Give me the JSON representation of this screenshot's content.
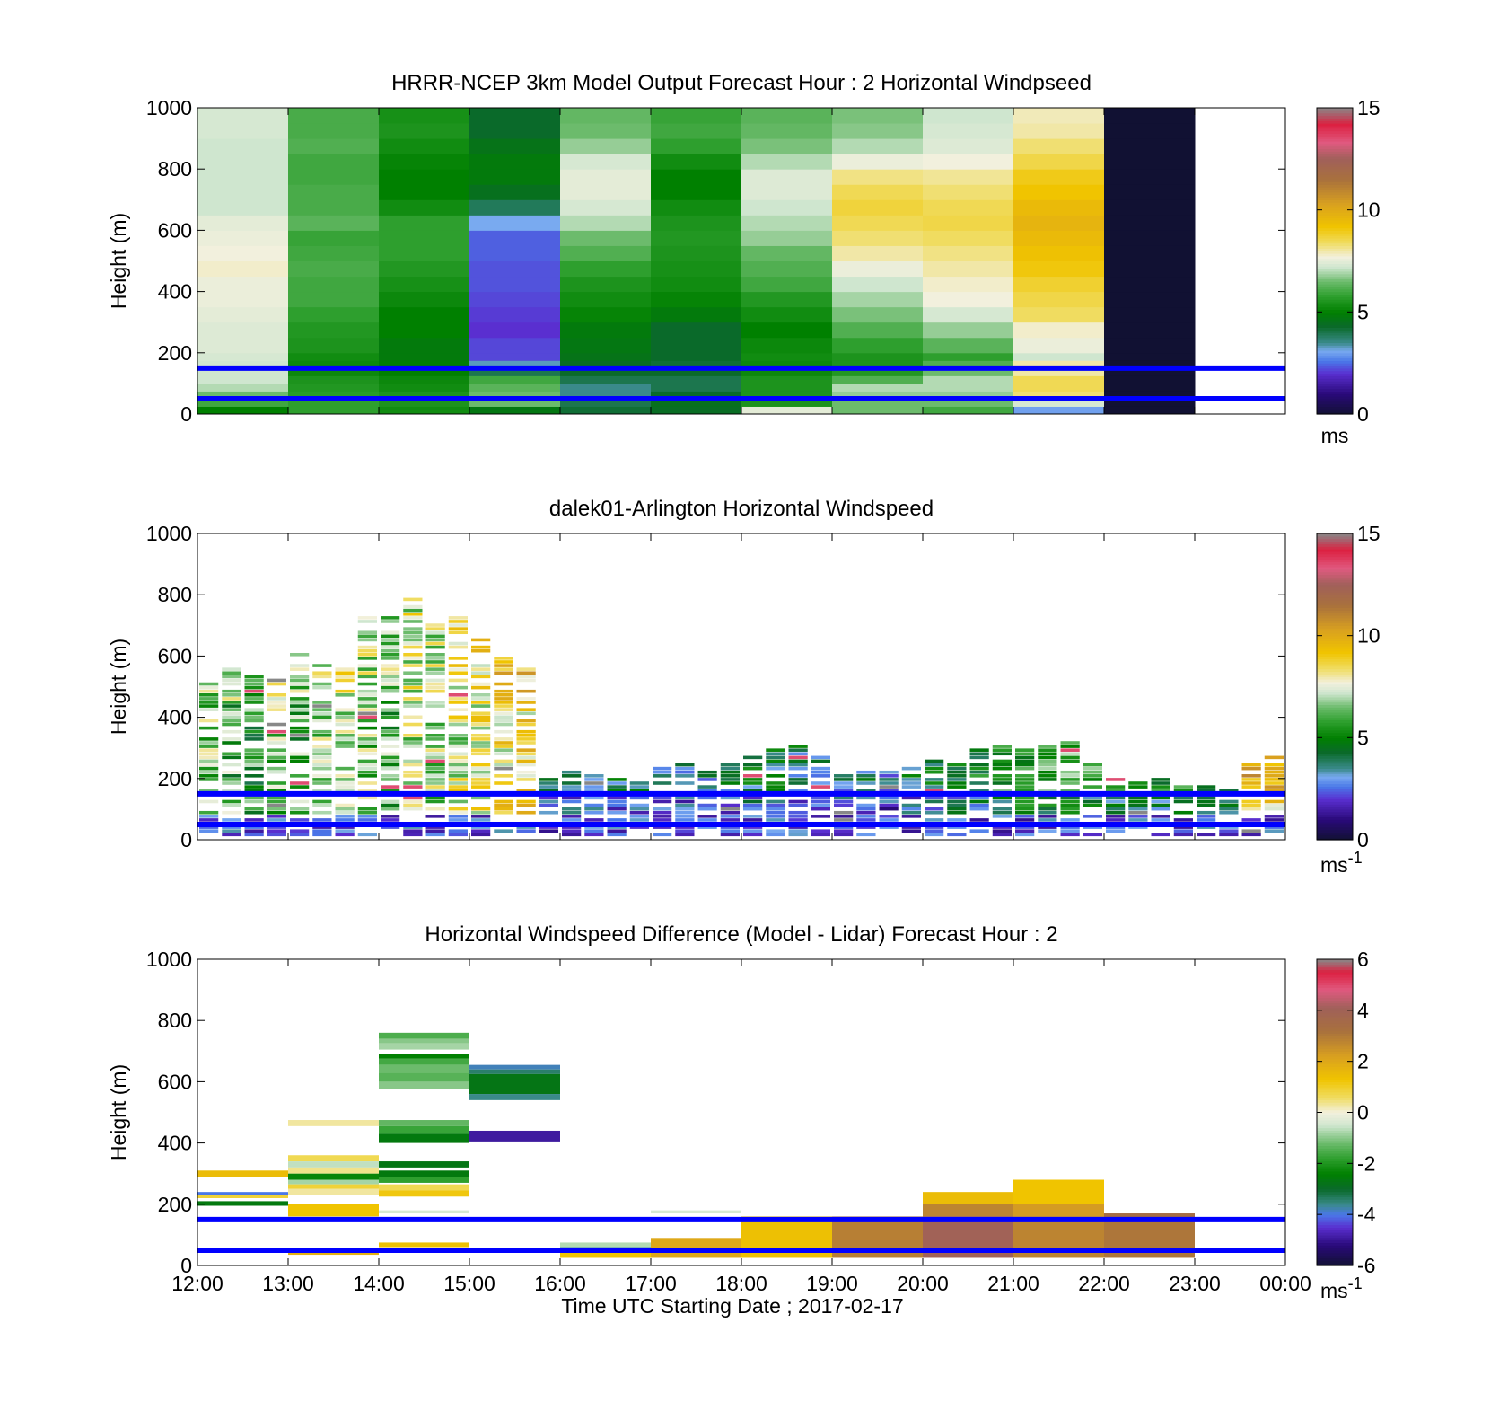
{
  "figure": {
    "xlabel": "Time UTC  Starting Date ; 2017-02-17",
    "xtick_labels": [
      "12:00",
      "13:00",
      "14:00",
      "15:00",
      "16:00",
      "17:00",
      "18:00",
      "19:00",
      "20:00",
      "21:00",
      "22:00",
      "23:00",
      "00:00"
    ]
  },
  "colors": {
    "reference_line": "#0000ff",
    "speed_colormap": [
      [
        0,
        "#111133"
      ],
      [
        1,
        "#2a0a7a"
      ],
      [
        2,
        "#5a2fd0"
      ],
      [
        2.6,
        "#4a78e8"
      ],
      [
        3.1,
        "#79aaf0"
      ],
      [
        3.5,
        "#3a8a8a"
      ],
      [
        4.3,
        "#0a6a2a"
      ],
      [
        5,
        "#008000"
      ],
      [
        5.8,
        "#2e9f2e"
      ],
      [
        6.5,
        "#6cbb6c"
      ],
      [
        7.2,
        "#cfe6cf"
      ],
      [
        7.7,
        "#f2f0dd"
      ],
      [
        8.4,
        "#f0dc60"
      ],
      [
        9.2,
        "#f0c400"
      ],
      [
        10.3,
        "#d9a020"
      ],
      [
        11.5,
        "#a8713d"
      ],
      [
        12.5,
        "#a0605a"
      ],
      [
        13.3,
        "#e05a80"
      ],
      [
        14.2,
        "#dc2040"
      ],
      [
        15,
        "#888888"
      ]
    ],
    "diff_colormap": [
      [
        -6,
        "#111133"
      ],
      [
        -5.2,
        "#2a0a7a"
      ],
      [
        -4.5,
        "#5a2fd0"
      ],
      [
        -4,
        "#4a78e8"
      ],
      [
        -3.6,
        "#3a8a8a"
      ],
      [
        -3,
        "#0a6a2a"
      ],
      [
        -2.4,
        "#008000"
      ],
      [
        -1.8,
        "#2e9f2e"
      ],
      [
        -1.2,
        "#6cbb6c"
      ],
      [
        -0.5,
        "#cfe6cf"
      ],
      [
        0,
        "#f2f0dd"
      ],
      [
        0.6,
        "#f0dc60"
      ],
      [
        1.3,
        "#f0c400"
      ],
      [
        2.2,
        "#d9a020"
      ],
      [
        3.2,
        "#a8713d"
      ],
      [
        4.1,
        "#a0605a"
      ],
      [
        4.8,
        "#e05a80"
      ],
      [
        5.5,
        "#dc2040"
      ],
      [
        6,
        "#888888"
      ]
    ]
  },
  "chart_data": [
    {
      "type": "heatmap",
      "title": "HRRR-NCEP 3km Model Output   Forecast Hour : 2 Horizontal Windpseed",
      "xlabel": "",
      "ylabel": "Height (m)",
      "xlim_hours": [
        12,
        24
      ],
      "ylim": [
        0,
        1000
      ],
      "yticks": [
        0,
        200,
        400,
        600,
        800,
        1000
      ],
      "clim": [
        0,
        15
      ],
      "colorbar_ticks": [
        0,
        5,
        10,
        15
      ],
      "colorbar_label": "ms",
      "colorbar_label_sup": "",
      "reference_lines_m": [
        150,
        50
      ],
      "grid": false,
      "x_hours": [
        12,
        13,
        14,
        15,
        16,
        17,
        18,
        19,
        20,
        21,
        22
      ],
      "y_levels_m": [
        25,
        50,
        75,
        100,
        125,
        150,
        175,
        200,
        250,
        300,
        350,
        400,
        450,
        500,
        550,
        600,
        650,
        700,
        750,
        800,
        850,
        900,
        950,
        1000
      ],
      "z": [
        [
          5,
          5.8,
          5.3,
          4.7,
          4.2,
          4.4,
          7.5,
          6.5,
          6,
          3
        ],
        [
          6,
          5.8,
          5.5,
          6.5,
          4,
          4.5,
          5.5,
          6.5,
          6.5,
          7.3
        ],
        [
          6.5,
          5.7,
          5.5,
          6.5,
          3.5,
          4.3,
          5.5,
          6.8,
          6.8,
          8.3
        ],
        [
          7,
          5.6,
          5.3,
          6.3,
          3.5,
          4,
          5.5,
          7,
          7,
          8.5
        ],
        [
          7.2,
          5.5,
          5.2,
          6,
          4,
          4,
          5.5,
          6.2,
          7,
          8.5
        ],
        [
          7.2,
          5.2,
          5,
          4,
          4.3,
          4.3,
          5.2,
          5.6,
          6.5,
          8
        ],
        [
          7.2,
          5.2,
          4.9,
          3.3,
          4.4,
          4.2,
          5.2,
          5.5,
          6.2,
          8
        ],
        [
          7.3,
          5.3,
          4.8,
          2.2,
          4.6,
          4.3,
          5.3,
          5.5,
          5.8,
          7.2
        ],
        [
          7.4,
          5.5,
          4.8,
          2.2,
          4.7,
          4.3,
          5.2,
          5.8,
          6.3,
          7.6
        ],
        [
          7.4,
          5.6,
          5,
          2,
          4.8,
          4.3,
          5,
          6.2,
          6.8,
          7.8
        ],
        [
          7.5,
          5.8,
          5,
          2.1,
          5.1,
          4.8,
          5.3,
          6.6,
          7.3,
          8.4
        ],
        [
          7.6,
          6,
          5.2,
          2.2,
          5.3,
          5.1,
          5.6,
          6.9,
          7.7,
          8.6
        ],
        [
          7.6,
          6,
          5.4,
          2.3,
          5.5,
          5.3,
          6,
          7.2,
          7.8,
          8.8
        ],
        [
          7.8,
          6.1,
          5.6,
          2.3,
          5.8,
          5.4,
          6.2,
          7.6,
          8,
          9.1
        ],
        [
          7.7,
          6,
          5.8,
          2.4,
          6.2,
          5.5,
          6.4,
          8,
          8.2,
          9.3
        ],
        [
          7.6,
          5.9,
          5.8,
          2.4,
          6.5,
          5.6,
          6.8,
          8.3,
          8.4,
          9.5
        ],
        [
          7.5,
          6.3,
          5.8,
          3.1,
          7,
          5.5,
          7,
          8.5,
          8.6,
          9.7
        ],
        [
          7.2,
          6.1,
          5.3,
          3.9,
          7.3,
          5.3,
          7.2,
          8.7,
          8.5,
          9.5
        ],
        [
          7.2,
          6.1,
          5.0,
          4.5,
          7.5,
          5.0,
          7.4,
          8.5,
          8.3,
          9.2
        ],
        [
          7.2,
          6,
          5.0,
          4.8,
          7.5,
          5.0,
          7.4,
          8.2,
          8.1,
          9.0
        ],
        [
          7.2,
          6,
          5.1,
          4.8,
          7.3,
          5.3,
          7,
          7.6,
          7.7,
          8.6
        ],
        [
          7.2,
          6.2,
          5.3,
          4.6,
          6.8,
          5.8,
          6.6,
          7.0,
          7.4,
          8.3
        ],
        [
          7.3,
          6.1,
          5.5,
          4.3,
          6.5,
          6,
          6.4,
          6.7,
          7.3,
          8.0
        ],
        [
          7.3,
          6.1,
          5.4,
          4.3,
          6.4,
          5.9,
          6.3,
          6.6,
          7.2,
          7.9
        ]
      ]
    },
    {
      "type": "heatmap",
      "title": "dalek01-Arlington  Horizontal Windspeed",
      "xlabel": "",
      "ylabel": "Height (m)",
      "xlim_hours": [
        12,
        24
      ],
      "ylim": [
        0,
        1000
      ],
      "yticks": [
        0,
        200,
        400,
        600,
        800,
        1000
      ],
      "clim": [
        0,
        15
      ],
      "colorbar_ticks": [
        0,
        5,
        10,
        15
      ],
      "colorbar_label": "ms",
      "colorbar_label_sup": "-1",
      "reference_lines_m": [
        150,
        50
      ],
      "grid": false,
      "columns": [
        {
          "t": 12.0,
          "top": 520,
          "base": 6.5
        },
        {
          "t": 12.25,
          "top": 560,
          "base": 6.0
        },
        {
          "t": 12.5,
          "top": 550,
          "base": 5.5
        },
        {
          "t": 12.75,
          "top": 540,
          "base": 6.5
        },
        {
          "t": 13.0,
          "top": 600,
          "base": 6.0
        },
        {
          "t": 13.25,
          "top": 580,
          "base": 6.8
        },
        {
          "t": 13.5,
          "top": 560,
          "base": 7.2
        },
        {
          "t": 13.75,
          "top": 740,
          "base": 6.5
        },
        {
          "t": 14.0,
          "top": 750,
          "base": 6.0
        },
        {
          "t": 14.25,
          "top": 790,
          "base": 7.0
        },
        {
          "t": 14.5,
          "top": 700,
          "base": 6.8
        },
        {
          "t": 14.75,
          "top": 730,
          "base": 7.5
        },
        {
          "t": 15.0,
          "top": 650,
          "base": 7.8
        },
        {
          "t": 15.25,
          "top": 620,
          "base": 8.3
        },
        {
          "t": 15.5,
          "top": 560,
          "base": 8.5
        },
        {
          "t": 15.75,
          "top": 210,
          "base": 3.0
        },
        {
          "t": 16.0,
          "top": 220,
          "base": 2.5
        },
        {
          "t": 16.25,
          "top": 210,
          "base": 2.8
        },
        {
          "t": 16.5,
          "top": 200,
          "base": 2.6
        },
        {
          "t": 16.75,
          "top": 190,
          "base": 2.5
        },
        {
          "t": 17.0,
          "top": 230,
          "base": 2.7
        },
        {
          "t": 17.25,
          "top": 240,
          "base": 2.2
        },
        {
          "t": 17.5,
          "top": 230,
          "base": 2.4
        },
        {
          "t": 17.75,
          "top": 250,
          "base": 2.6
        },
        {
          "t": 18.0,
          "top": 270,
          "base": 3.0
        },
        {
          "t": 18.25,
          "top": 310,
          "base": 3.2
        },
        {
          "t": 18.5,
          "top": 300,
          "base": 2.8
        },
        {
          "t": 18.75,
          "top": 270,
          "base": 2.6
        },
        {
          "t": 19.0,
          "top": 210,
          "base": 2.4
        },
        {
          "t": 19.25,
          "top": 230,
          "base": 2.4
        },
        {
          "t": 19.5,
          "top": 220,
          "base": 2.2
        },
        {
          "t": 19.75,
          "top": 230,
          "base": 2.7
        },
        {
          "t": 20.0,
          "top": 270,
          "base": 3.2
        },
        {
          "t": 20.25,
          "top": 250,
          "base": 3.5
        },
        {
          "t": 20.5,
          "top": 290,
          "base": 3.8
        },
        {
          "t": 20.75,
          "top": 300,
          "base": 4.3
        },
        {
          "t": 21.0,
          "top": 290,
          "base": 4.6
        },
        {
          "t": 21.25,
          "top": 310,
          "base": 4.8
        },
        {
          "t": 21.5,
          "top": 340,
          "base": 4.8
        },
        {
          "t": 21.75,
          "top": 240,
          "base": 4.4
        },
        {
          "t": 22.0,
          "top": 200,
          "base": 4.0
        },
        {
          "t": 22.25,
          "top": 190,
          "base": 3.8
        },
        {
          "t": 22.5,
          "top": 200,
          "base": 4.0
        },
        {
          "t": 22.75,
          "top": 180,
          "base": 4.1
        },
        {
          "t": 23.0,
          "top": 170,
          "base": 4.2
        },
        {
          "t": 23.25,
          "top": 160,
          "base": 4.0
        },
        {
          "t": 23.5,
          "top": 250,
          "base": 8.8
        },
        {
          "t": 23.75,
          "top": 280,
          "base": 8.6
        }
      ]
    },
    {
      "type": "heatmap",
      "title": "Horizontal Windspeed Difference (Model - Lidar) Forecast Hour : 2",
      "xlabel": "Time UTC  Starting Date ; 2017-02-17",
      "ylabel": "Height (m)",
      "xlim_hours": [
        12,
        24
      ],
      "ylim": [
        0,
        1000
      ],
      "yticks": [
        0,
        200,
        400,
        600,
        800,
        1000
      ],
      "clim": [
        -6,
        6
      ],
      "colorbar_ticks": [
        -6,
        -4,
        -2,
        0,
        2,
        4,
        6
      ],
      "colorbar_label": "ms",
      "colorbar_label_sup": "-1",
      "reference_lines_m": [
        150,
        50
      ],
      "grid": false,
      "cells": [
        {
          "t0": 12,
          "t1": 13,
          "y0": 290,
          "y1": 310,
          "v": 1.5
        },
        {
          "t0": 12,
          "t1": 13,
          "y0": 230,
          "y1": 240,
          "v": -4.0
        },
        {
          "t0": 12,
          "t1": 13,
          "y0": 220,
          "y1": 230,
          "v": 0.9
        },
        {
          "t0": 12,
          "t1": 13,
          "y0": 195,
          "y1": 210,
          "v": -2.6
        },
        {
          "t0": 13,
          "t1": 14,
          "y0": 455,
          "y1": 475,
          "v": 0.3
        },
        {
          "t0": 13,
          "t1": 14,
          "y0": 340,
          "y1": 360,
          "v": 0.7
        },
        {
          "t0": 13,
          "t1": 14,
          "y0": 320,
          "y1": 340,
          "v": -0.6
        },
        {
          "t0": 13,
          "t1": 14,
          "y0": 300,
          "y1": 320,
          "v": 0.4
        },
        {
          "t0": 13,
          "t1": 14,
          "y0": 280,
          "y1": 300,
          "v": -2.3
        },
        {
          "t0": 13,
          "t1": 14,
          "y0": 265,
          "y1": 280,
          "v": -0.8
        },
        {
          "t0": 13,
          "t1": 14,
          "y0": 250,
          "y1": 265,
          "v": 0.9
        },
        {
          "t0": 13,
          "t1": 14,
          "y0": 230,
          "y1": 250,
          "v": 0.3
        },
        {
          "t0": 13,
          "t1": 14,
          "y0": 160,
          "y1": 200,
          "v": 1.3
        },
        {
          "t0": 13,
          "t1": 14,
          "y0": 35,
          "y1": 45,
          "v": 1.8
        },
        {
          "t0": 14,
          "t1": 15,
          "y0": 740,
          "y1": 760,
          "v": -1.5
        },
        {
          "t0": 14,
          "t1": 15,
          "y0": 725,
          "y1": 740,
          "v": -1.0
        },
        {
          "t0": 14,
          "t1": 15,
          "y0": 705,
          "y1": 725,
          "v": -0.8
        },
        {
          "t0": 14,
          "t1": 15,
          "y0": 675,
          "y1": 690,
          "v": -2.4
        },
        {
          "t0": 14,
          "t1": 15,
          "y0": 655,
          "y1": 675,
          "v": -1.6
        },
        {
          "t0": 14,
          "t1": 15,
          "y0": 630,
          "y1": 655,
          "v": -1.2
        },
        {
          "t0": 14,
          "t1": 15,
          "y0": 600,
          "y1": 630,
          "v": -1.4
        },
        {
          "t0": 14,
          "t1": 15,
          "y0": 575,
          "y1": 600,
          "v": -1.0
        },
        {
          "t0": 14,
          "t1": 15,
          "y0": 455,
          "y1": 475,
          "v": -1.3
        },
        {
          "t0": 14,
          "t1": 15,
          "y0": 430,
          "y1": 455,
          "v": -1.7
        },
        {
          "t0": 14,
          "t1": 15,
          "y0": 400,
          "y1": 430,
          "v": -2.6
        },
        {
          "t0": 14,
          "t1": 15,
          "y0": 320,
          "y1": 340,
          "v": -2.7
        },
        {
          "t0": 14,
          "t1": 15,
          "y0": 290,
          "y1": 310,
          "v": -2.6
        },
        {
          "t0": 14,
          "t1": 15,
          "y0": 270,
          "y1": 290,
          "v": -1.8
        },
        {
          "t0": 14,
          "t1": 15,
          "y0": 245,
          "y1": 265,
          "v": 0.7
        },
        {
          "t0": 14,
          "t1": 15,
          "y0": 225,
          "y1": 245,
          "v": 1.2
        },
        {
          "t0": 14,
          "t1": 15,
          "y0": 170,
          "y1": 180,
          "v": -0.4
        },
        {
          "t0": 14,
          "t1": 15,
          "y0": 60,
          "y1": 75,
          "v": 1.4
        },
        {
          "t0": 15,
          "t1": 16,
          "y0": 640,
          "y1": 655,
          "v": -3.8
        },
        {
          "t0": 15,
          "t1": 16,
          "y0": 625,
          "y1": 640,
          "v": -3.4
        },
        {
          "t0": 15,
          "t1": 16,
          "y0": 560,
          "y1": 625,
          "v": -2.7
        },
        {
          "t0": 15,
          "t1": 16,
          "y0": 540,
          "y1": 560,
          "v": -3.6
        },
        {
          "t0": 15,
          "t1": 16,
          "y0": 405,
          "y1": 440,
          "v": -4.9
        },
        {
          "t0": 16,
          "t1": 17,
          "y0": 60,
          "y1": 75,
          "v": -0.7
        },
        {
          "t0": 16,
          "t1": 17,
          "y0": 45,
          "y1": 60,
          "v": -3.8
        },
        {
          "t0": 16,
          "t1": 17,
          "y0": 25,
          "y1": 45,
          "v": 1.3
        },
        {
          "t0": 17,
          "t1": 18,
          "y0": 170,
          "y1": 180,
          "v": -0.4
        },
        {
          "t0": 17,
          "t1": 18,
          "y0": 25,
          "y1": 90,
          "v": 2.0
        },
        {
          "t0": 18,
          "t1": 19,
          "y0": 25,
          "y1": 160,
          "v": 1.4
        },
        {
          "t0": 19,
          "t1": 20,
          "y0": 25,
          "y1": 160,
          "v": 2.9
        },
        {
          "t0": 20,
          "t1": 21,
          "y0": 200,
          "y1": 240,
          "v": 1.5
        },
        {
          "t0": 20,
          "t1": 21,
          "y0": 160,
          "y1": 200,
          "v": 2.8
        },
        {
          "t0": 20,
          "t1": 21,
          "y0": 25,
          "y1": 160,
          "v": 4.0
        },
        {
          "t0": 21,
          "t1": 22,
          "y0": 200,
          "y1": 280,
          "v": 1.3
        },
        {
          "t0": 21,
          "t1": 22,
          "y0": 160,
          "y1": 200,
          "v": 2.3
        },
        {
          "t0": 21,
          "t1": 22,
          "y0": 25,
          "y1": 160,
          "v": 2.8
        },
        {
          "t0": 22,
          "t1": 23,
          "y0": 150,
          "y1": 170,
          "v": 3.4
        },
        {
          "t0": 22,
          "t1": 23,
          "y0": 25,
          "y1": 150,
          "v": 3.1
        }
      ]
    }
  ]
}
